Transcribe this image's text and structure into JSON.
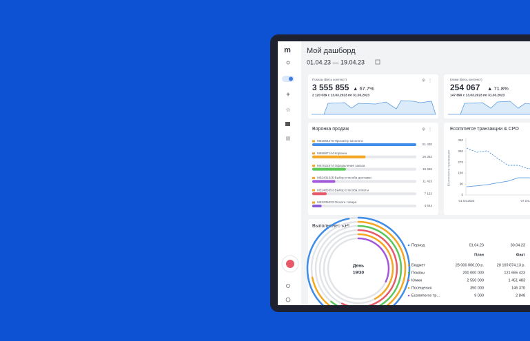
{
  "sidebar": {
    "logo": "m"
  },
  "header": {
    "title": "Мой дашборд",
    "date_range": "01.04.23 — 19.04.23"
  },
  "cards": [
    {
      "title": "Показы (Весь контекст)",
      "value": "3 555 855",
      "change": "▲ 67.7%",
      "comparison": "2 120 039 с 13.03.2023 по 31.03.2023"
    },
    {
      "title": "Клики (Весь контекст)",
      "value": "254 067",
      "change": "▲ 71.8%",
      "comparison": "147 890 с 13.03.2023 по 31.03.2023"
    }
  ],
  "funnel": {
    "type": "bar",
    "title": "Воронка продаж",
    "categories": [
      "M52064470 Просмотр каталога",
      "M55687144 Корзина",
      "M57022674 Оформление заказа",
      "M52431325 Выбор способа доставки",
      "M52485053 Выбор способа оплаты",
      "M52235023 Оплата товара"
    ],
    "values": [
      51430,
      26362,
      16659,
      11413,
      7152,
      4644
    ],
    "value_labels": [
      "51 430",
      "26 362",
      "16 659",
      "11 413",
      "7 152",
      "4 644"
    ],
    "colors": [
      "#3f8de8",
      "#f5a623",
      "#5ac95a",
      "#a259d9",
      "#e85a6a",
      "#8a5ad9"
    ]
  },
  "ecommerce": {
    "type": "line",
    "title": "Ecommerce транзакции & CPO",
    "y_label": "Ecommerce транзакции",
    "categories": [
      "01.04.2023",
      null,
      null,
      null,
      null,
      null,
      "07.04.2023",
      null,
      null,
      null,
      null,
      null,
      null,
      null,
      null,
      null,
      null,
      null,
      null
    ],
    "series": [
      {
        "color": "#5b9bdf",
        "dashed": true,
        "values": [
          387,
          353,
          365,
          302,
          245,
          245,
          216,
          230,
          210,
          225,
          205,
          215,
          200,
          210,
          195,
          205,
          190,
          200,
          195
        ]
      },
      {
        "color": "#5b9bdf",
        "dashed": false,
        "values": [
          68,
          76,
          85,
          100,
          114,
          142,
          142,
          135,
          140,
          130,
          138,
          132,
          140,
          135,
          130,
          138,
          134,
          140,
          136
        ]
      }
    ],
    "ylim": [
      0,
      450
    ],
    "yticks": [
      0,
      90,
      180,
      270,
      360,
      450
    ]
  },
  "kpi": {
    "title": "Выполнение KPI",
    "center_label": "День",
    "center_value": "19/30",
    "table": {
      "period_label": "Период",
      "start": "01.04.23",
      "end": "30.04.23",
      "plan": "План",
      "fact": "Факт",
      "rows": [
        {
          "name": "Бюджет",
          "plan": "28 000 000,00 р.",
          "fact": "20 169 874,13 р."
        },
        {
          "name": "Показы",
          "plan": "200 000 000",
          "fact": "121 665 423"
        },
        {
          "name": "Клики",
          "plan": "2 550 000",
          "fact": "1 451 483"
        },
        {
          "name": "Посещения",
          "plan": "350 000",
          "fact": "146 370"
        },
        {
          "name": "Ecommerce тр...",
          "plan": "9 000",
          "fact": "2 848"
        }
      ]
    }
  }
}
